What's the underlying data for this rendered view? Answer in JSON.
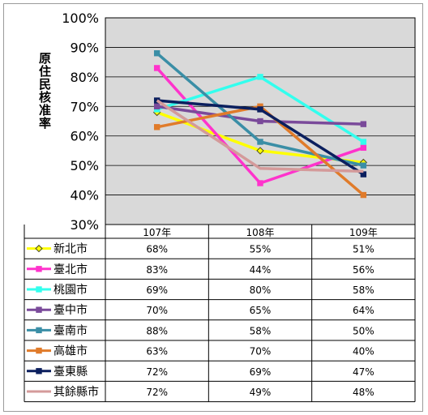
{
  "chart_data": {
    "type": "line",
    "title": "",
    "ylabel": "原住民核准率",
    "xlabel": "",
    "categories": [
      "107年",
      "108年",
      "109年"
    ],
    "ylim": [
      30,
      100
    ],
    "yticks": [
      "30%",
      "40%",
      "50%",
      "60%",
      "70%",
      "80%",
      "90%",
      "100%"
    ],
    "grid": true,
    "plot_background": "#d9d9d9",
    "legend_placement": "data-table-below",
    "series": [
      {
        "name": "新北市",
        "values": [
          68,
          55,
          51
        ],
        "labels": [
          "68%",
          "55%",
          "51%"
        ],
        "color": "#ffff00",
        "marker": "diamond"
      },
      {
        "name": "臺北市",
        "values": [
          83,
          44,
          56
        ],
        "labels": [
          "83%",
          "44%",
          "56%"
        ],
        "color": "#ff33cc",
        "marker": "square"
      },
      {
        "name": "桃園市",
        "values": [
          69,
          80,
          58
        ],
        "labels": [
          "69%",
          "80%",
          "58%"
        ],
        "color": "#33ffee",
        "marker": "square"
      },
      {
        "name": "臺中市",
        "values": [
          70,
          65,
          64
        ],
        "labels": [
          "70%",
          "65%",
          "64%"
        ],
        "color": "#7a4a9a",
        "marker": "square"
      },
      {
        "name": "臺南市",
        "values": [
          88,
          58,
          50
        ],
        "labels": [
          "88%",
          "58%",
          "50%"
        ],
        "color": "#3a8ea6",
        "marker": "square"
      },
      {
        "name": "高雄市",
        "values": [
          63,
          70,
          40
        ],
        "labels": [
          "63%",
          "70%",
          "40%"
        ],
        "color": "#e07b2a",
        "marker": "square"
      },
      {
        "name": "臺東縣",
        "values": [
          72,
          69,
          47
        ],
        "labels": [
          "72%",
          "69%",
          "47%"
        ],
        "color": "#0b1f5e",
        "marker": "square"
      },
      {
        "name": "其餘縣市",
        "values": [
          72,
          49,
          48
        ],
        "labels": [
          "72%",
          "49%",
          "48%"
        ],
        "color": "#d49a9a",
        "marker": "none"
      }
    ]
  }
}
